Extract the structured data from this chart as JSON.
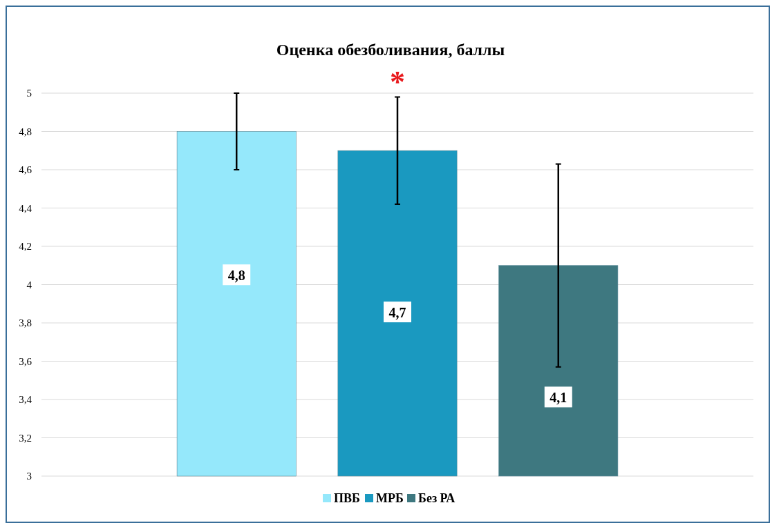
{
  "chart_data": {
    "type": "bar",
    "title": "Оценка обезболивания, баллы",
    "categories": [
      null
    ],
    "series": [
      {
        "name": "ПВБ",
        "color": "#95e8fb",
        "values": [
          4.8
        ],
        "errors": [
          0.2
        ],
        "value_labels": [
          "4,8"
        ]
      },
      {
        "name": "МРБ",
        "color": "#1a99c0",
        "values": [
          4.7
        ],
        "errors": [
          0.28
        ],
        "value_labels": [
          "4,7"
        ]
      },
      {
        "name": "Без РА",
        "color": "#3e7880",
        "values": [
          4.1
        ],
        "errors": [
          0.53
        ],
        "value_labels": [
          "4,1"
        ]
      }
    ],
    "ylim": [
      3,
      5
    ],
    "yticks": [
      3,
      {
        "value": 3.2,
        "label": "3,2"
      },
      {
        "value": 3.4,
        "label": "3,4"
      },
      {
        "value": 3.6,
        "label": "3,6"
      },
      {
        "value": 3.8,
        "label": "3,8"
      },
      4,
      {
        "value": 4.2,
        "label": "4,2"
      },
      {
        "value": 4.4,
        "label": "4,4"
      },
      {
        "value": 4.6,
        "label": "4,6"
      },
      {
        "value": 4.8,
        "label": "4,8"
      },
      5
    ],
    "grid": "y",
    "legend": "bottom",
    "annotations": [
      "*"
    ]
  }
}
